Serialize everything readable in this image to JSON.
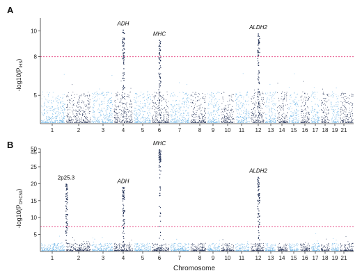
{
  "colors": {
    "light": "#6ab3e6",
    "dark": "#1c2b52",
    "threshold": "#e8508a",
    "axis": "#333333"
  },
  "chart_data": [
    {
      "type": "scatter",
      "panel_label": "A",
      "ylabel": "-log10(P",
      "ylabel_sub": "iHS",
      "ylabel_tail": ")",
      "yticks": [
        {
          "label": "5",
          "value": 5
        },
        {
          "label": "8",
          "value": 8
        },
        {
          "label": "10",
          "value": 10
        }
      ],
      "ylim": [
        2.8,
        11
      ],
      "threshold": 8,
      "xticks": [
        "1",
        "2",
        "3",
        "4",
        "5",
        "6",
        "7",
        "8",
        "9",
        "10",
        "11",
        "12",
        "13",
        "14",
        "15",
        "16",
        "17",
        "18",
        "19",
        "21"
      ],
      "annotations": [
        {
          "label": "ADH",
          "chrom": "4",
          "peak": 10.1,
          "italic": true
        },
        {
          "label": "MHC",
          "chrom": "6",
          "peak": 9.3,
          "italic": true
        },
        {
          "label": "ALDH2",
          "chrom": "12",
          "peak": 9.8,
          "italic": true
        }
      ]
    },
    {
      "type": "scatter",
      "panel_label": "B",
      "ylabel": "-log10(P",
      "ylabel_sub": "DRC50",
      "ylabel_tail": ")",
      "yticks": [
        {
          "label": "5",
          "value": 5
        },
        {
          "label": "10",
          "value": 10
        },
        {
          "label": "15",
          "value": 15
        },
        {
          "label": "20",
          "value": 20
        },
        {
          "label": "25",
          "value": 25
        },
        {
          "label": "45",
          "value": 45
        },
        {
          "label": "50",
          "value": 50
        }
      ],
      "ylim": [
        0,
        50
      ],
      "threshold": 7.3,
      "xlabel": "Chromosome",
      "xticks": [
        "1",
        "2",
        "3",
        "4",
        "5",
        "6",
        "7",
        "8",
        "9",
        "10",
        "11",
        "12",
        "13",
        "14",
        "15",
        "16",
        "17",
        "18",
        "19",
        "21"
      ],
      "annotations": [
        {
          "label": "2p25.3",
          "chrom": "2",
          "peak": 20,
          "italic": false
        },
        {
          "label": "ADH",
          "chrom": "4",
          "peak": 19,
          "italic": true
        },
        {
          "label": "MHC",
          "chrom": "6",
          "peak": 49,
          "italic": true
        },
        {
          "label": "ALDH2",
          "chrom": "12",
          "peak": 22,
          "italic": true
        }
      ]
    }
  ]
}
